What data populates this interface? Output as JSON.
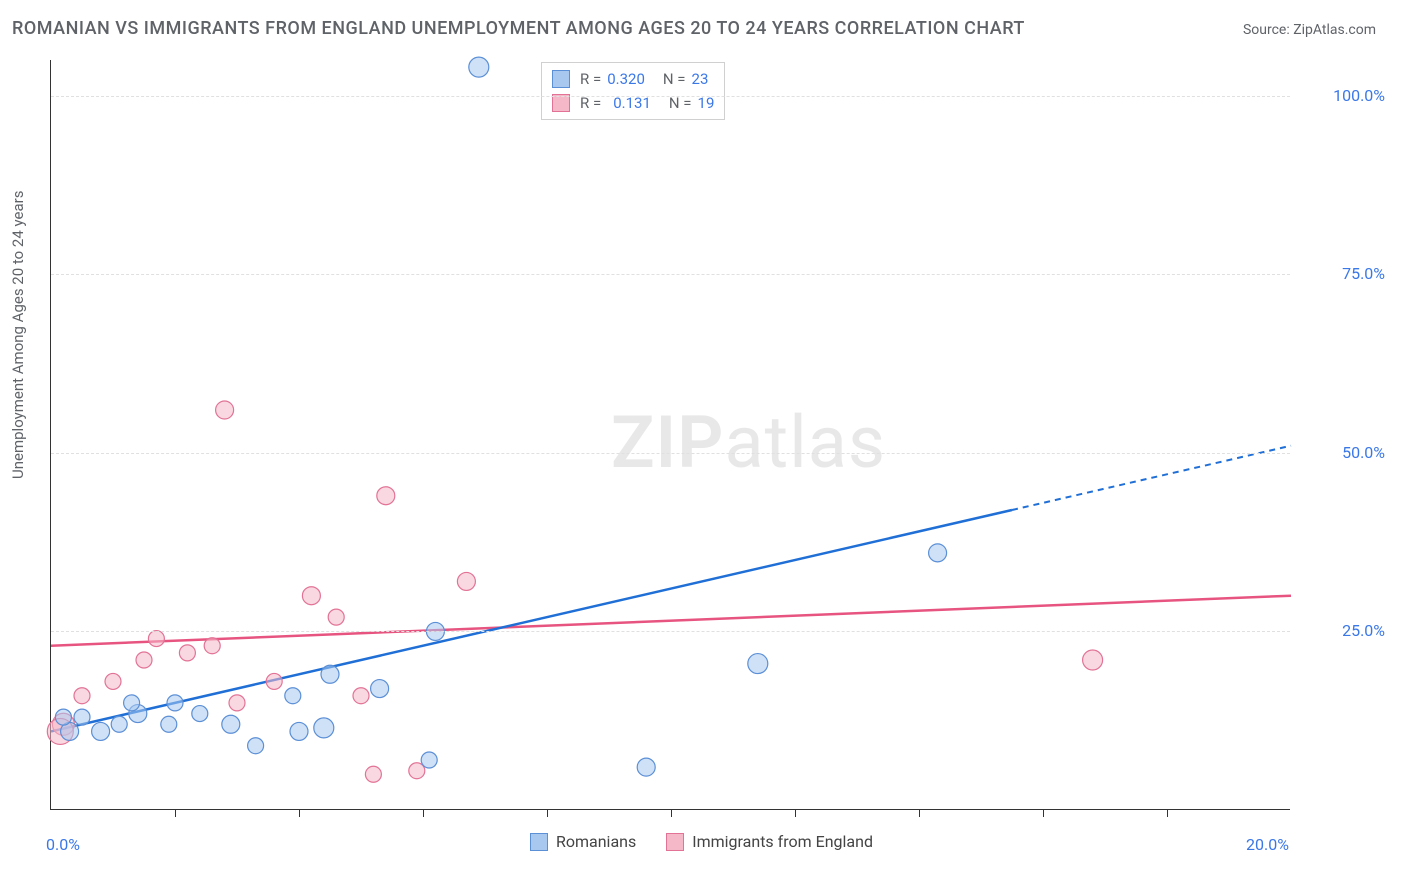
{
  "title": "ROMANIAN VS IMMIGRANTS FROM ENGLAND UNEMPLOYMENT AMONG AGES 20 TO 24 YEARS CORRELATION CHART",
  "source": "Source: ZipAtlas.com",
  "ylabel": "Unemployment Among Ages 20 to 24 years",
  "watermark": {
    "zip": "ZIP",
    "atlas": "atlas"
  },
  "chart": {
    "type": "scatter",
    "background_color": "#ffffff",
    "grid_color": "#e0e0e0",
    "axis_color": "#333333",
    "tick_label_color": "#3b78e7",
    "xlim": [
      0,
      20
    ],
    "ylim": [
      0,
      105
    ],
    "x_ticks_minor": [
      2,
      4,
      6,
      8,
      10,
      12,
      14,
      16,
      18
    ],
    "x_tick_labels": [
      {
        "val": 0,
        "label": "0.0%"
      },
      {
        "val": 20,
        "label": "20.0%"
      }
    ],
    "y_tick_labels": [
      {
        "val": 25,
        "label": "25.0%"
      },
      {
        "val": 50,
        "label": "50.0%"
      },
      {
        "val": 75,
        "label": "75.0%"
      },
      {
        "val": 100,
        "label": "100.0%"
      }
    ],
    "y_grid": [
      25,
      50,
      75,
      100
    ],
    "series": [
      {
        "name": "Romanians",
        "fill": "#a8c8f0",
        "stroke": "#5b8fd6",
        "fill_opacity": 0.55,
        "line_color": "#1f6fd6",
        "r_value": "0.320",
        "n_value": "23",
        "trend": {
          "x1": 0,
          "y1": 11,
          "x2_solid": 15.5,
          "y2_solid": 42,
          "x2": 20,
          "y2": 51
        },
        "points": [
          {
            "x": 6.9,
            "y": 104,
            "r": 10
          },
          {
            "x": 14.3,
            "y": 36,
            "r": 9
          },
          {
            "x": 11.4,
            "y": 20.5,
            "r": 10
          },
          {
            "x": 9.6,
            "y": 6,
            "r": 9
          },
          {
            "x": 6.1,
            "y": 7,
            "r": 8
          },
          {
            "x": 6.2,
            "y": 25,
            "r": 9
          },
          {
            "x": 5.3,
            "y": 17,
            "r": 9
          },
          {
            "x": 4.5,
            "y": 19,
            "r": 9
          },
          {
            "x": 4.4,
            "y": 11.5,
            "r": 10
          },
          {
            "x": 3.9,
            "y": 16,
            "r": 8
          },
          {
            "x": 4.0,
            "y": 11,
            "r": 9
          },
          {
            "x": 3.3,
            "y": 9,
            "r": 8
          },
          {
            "x": 2.9,
            "y": 12,
            "r": 9
          },
          {
            "x": 2.4,
            "y": 13.5,
            "r": 8
          },
          {
            "x": 2.0,
            "y": 15,
            "r": 8
          },
          {
            "x": 1.9,
            "y": 12,
            "r": 8
          },
          {
            "x": 1.4,
            "y": 13.5,
            "r": 9
          },
          {
            "x": 1.1,
            "y": 12,
            "r": 8
          },
          {
            "x": 1.3,
            "y": 15,
            "r": 8
          },
          {
            "x": 0.8,
            "y": 11,
            "r": 9
          },
          {
            "x": 0.5,
            "y": 13,
            "r": 8
          },
          {
            "x": 0.3,
            "y": 11,
            "r": 9
          },
          {
            "x": 0.2,
            "y": 13,
            "r": 8
          }
        ]
      },
      {
        "name": "Immigrants from England",
        "fill": "#f5b8c8",
        "stroke": "#e27396",
        "fill_opacity": 0.55,
        "line_color": "#e75480",
        "r_value": "0.131",
        "n_value": "19",
        "trend": {
          "x1": 0,
          "y1": 23,
          "x2_solid": 20,
          "y2_solid": 30,
          "x2": 20,
          "y2": 30
        },
        "points": [
          {
            "x": 2.8,
            "y": 56,
            "r": 9
          },
          {
            "x": 5.4,
            "y": 44,
            "r": 9
          },
          {
            "x": 6.7,
            "y": 32,
            "r": 9
          },
          {
            "x": 4.2,
            "y": 30,
            "r": 9
          },
          {
            "x": 4.6,
            "y": 27,
            "r": 8
          },
          {
            "x": 2.6,
            "y": 23,
            "r": 8
          },
          {
            "x": 2.2,
            "y": 22,
            "r": 8
          },
          {
            "x": 1.5,
            "y": 21,
            "r": 8
          },
          {
            "x": 1.7,
            "y": 24,
            "r": 8
          },
          {
            "x": 1.0,
            "y": 18,
            "r": 8
          },
          {
            "x": 0.5,
            "y": 16,
            "r": 8
          },
          {
            "x": 0.2,
            "y": 12,
            "r": 11
          },
          {
            "x": 0.15,
            "y": 11,
            "r": 13
          },
          {
            "x": 3.6,
            "y": 18,
            "r": 8
          },
          {
            "x": 5.0,
            "y": 16,
            "r": 8
          },
          {
            "x": 5.2,
            "y": 5,
            "r": 8
          },
          {
            "x": 5.9,
            "y": 5.5,
            "r": 8
          },
          {
            "x": 16.8,
            "y": 21,
            "r": 10
          },
          {
            "x": 3.0,
            "y": 15,
            "r": 8
          }
        ]
      }
    ]
  },
  "legend_top": {
    "r_label": "R =",
    "n_label": "N ="
  },
  "legend_bottom": {
    "items": [
      "Romanians",
      "Immigrants from England"
    ]
  }
}
